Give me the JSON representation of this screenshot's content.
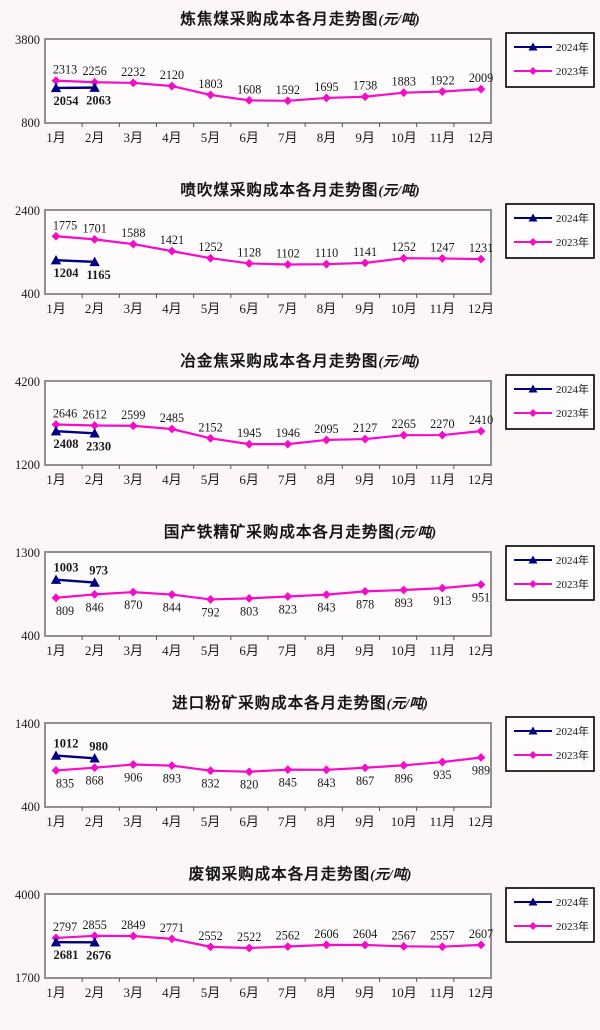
{
  "colors": {
    "series_2024": "#000080",
    "series_2023": "#f50cc8",
    "frame": "#909090",
    "tick": "#555555",
    "text": "#1a1a1a",
    "legend_border": "#000000",
    "plot_fill": "#fdfbfb"
  },
  "legend": {
    "labels": [
      "2024年",
      "2023年"
    ],
    "position": "right"
  },
  "months": [
    "1月",
    "2月",
    "3月",
    "4月",
    "5月",
    "6月",
    "7月",
    "8月",
    "9月",
    "10月",
    "11月",
    "12月"
  ],
  "chart_data": [
    {
      "type": "line",
      "title": "炼焦煤采购成本各月走势图",
      "unit": "(元/吨)",
      "xlabel": "",
      "ylabel": "",
      "ylim": [
        800,
        3800
      ],
      "grid": false,
      "legend_position": "right",
      "categories": [
        "1月",
        "2月",
        "3月",
        "4月",
        "5月",
        "6月",
        "7月",
        "8月",
        "9月",
        "10月",
        "11月",
        "12月"
      ],
      "series": [
        {
          "name": "2024年",
          "values": [
            2054,
            2063
          ]
        },
        {
          "name": "2023年",
          "values": [
            2313,
            2256,
            2232,
            2120,
            1803,
            1608,
            1592,
            1695,
            1738,
            1883,
            1922,
            2009
          ]
        }
      ]
    },
    {
      "type": "line",
      "title": "喷吹煤采购成本各月走势图",
      "unit": "(元/吨)",
      "xlabel": "",
      "ylabel": "",
      "ylim": [
        400,
        2400
      ],
      "grid": false,
      "legend_position": "right",
      "categories": [
        "1月",
        "2月",
        "3月",
        "4月",
        "5月",
        "6月",
        "7月",
        "8月",
        "9月",
        "10月",
        "11月",
        "12月"
      ],
      "series": [
        {
          "name": "2024年",
          "values": [
            1204,
            1165
          ]
        },
        {
          "name": "2023年",
          "values": [
            1775,
            1701,
            1588,
            1421,
            1252,
            1128,
            1102,
            1110,
            1141,
            1252,
            1247,
            1231
          ]
        }
      ]
    },
    {
      "type": "line",
      "title": "冶金焦采购成本各月走势图",
      "unit": "(元/吨)",
      "xlabel": "",
      "ylabel": "",
      "ylim": [
        1200,
        4200
      ],
      "grid": false,
      "legend_position": "right",
      "categories": [
        "1月",
        "2月",
        "3月",
        "4月",
        "5月",
        "6月",
        "7月",
        "8月",
        "9月",
        "10月",
        "11月",
        "12月"
      ],
      "series": [
        {
          "name": "2024年",
          "values": [
            2408,
            2330
          ]
        },
        {
          "name": "2023年",
          "values": [
            2646,
            2612,
            2599,
            2485,
            2152,
            1945,
            1946,
            2095,
            2127,
            2265,
            2270,
            2410
          ]
        }
      ]
    },
    {
      "type": "line",
      "title": "国产铁精矿采购成本各月走势图",
      "unit": "(元/吨)",
      "xlabel": "",
      "ylabel": "",
      "ylim": [
        400,
        1300
      ],
      "grid": false,
      "legend_position": "right",
      "categories": [
        "1月",
        "2月",
        "3月",
        "4月",
        "5月",
        "6月",
        "7月",
        "8月",
        "9月",
        "10月",
        "11月",
        "12月"
      ],
      "series": [
        {
          "name": "2024年",
          "values": [
            1003,
            973
          ]
        },
        {
          "name": "2023年",
          "values": [
            809,
            846,
            870,
            844,
            792,
            803,
            823,
            843,
            878,
            893,
            913,
            951
          ]
        }
      ]
    },
    {
      "type": "line",
      "title": "进口粉矿采购成本各月走势图",
      "unit": "(元/吨)",
      "xlabel": "",
      "ylabel": "",
      "ylim": [
        400,
        1400
      ],
      "grid": false,
      "legend_position": "right",
      "categories": [
        "1月",
        "2月",
        "3月",
        "4月",
        "5月",
        "6月",
        "7月",
        "8月",
        "9月",
        "10月",
        "11月",
        "12月"
      ],
      "series": [
        {
          "name": "2024年",
          "values": [
            1012,
            980
          ]
        },
        {
          "name": "2023年",
          "values": [
            835,
            868,
            906,
            893,
            832,
            820,
            845,
            843,
            867,
            896,
            935,
            989
          ]
        }
      ]
    },
    {
      "type": "line",
      "title": "废钢采购成本各月走势图",
      "unit": "(元/吨)",
      "xlabel": "",
      "ylabel": "",
      "ylim": [
        1700,
        4000
      ],
      "grid": false,
      "legend_position": "right",
      "categories": [
        "1月",
        "2月",
        "3月",
        "4月",
        "5月",
        "6月",
        "7月",
        "8月",
        "9月",
        "10月",
        "11月",
        "12月"
      ],
      "series": [
        {
          "name": "2024年",
          "values": [
            2681,
            2676
          ]
        },
        {
          "name": "2023年",
          "values": [
            2797,
            2855,
            2849,
            2771,
            2552,
            2522,
            2562,
            2606,
            2604,
            2567,
            2557,
            2607
          ]
        }
      ]
    }
  ]
}
